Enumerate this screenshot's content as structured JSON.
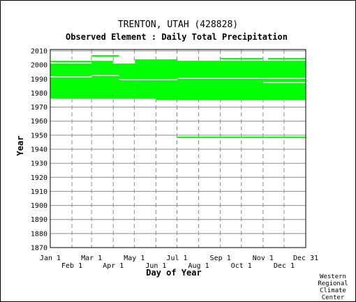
{
  "chart_data": {
    "type": "heatmap",
    "title": "TRENTON, UTAH   (428828)",
    "subtitle": "Observed Element : Daily Total Precipitation",
    "xlabel": "Day of Year",
    "ylabel": "Year",
    "credit": [
      "Western",
      "Regional",
      "Climate",
      "Center"
    ],
    "xlim": [
      1,
      366
    ],
    "ylim": [
      1870,
      2011
    ],
    "y_ticks": [
      1870,
      1880,
      1890,
      1900,
      1910,
      1920,
      1930,
      1940,
      1950,
      1960,
      1970,
      1980,
      1990,
      2000,
      2010
    ],
    "x_ticks_upper": [
      {
        "label": "Jan 1",
        "day": 1
      },
      {
        "label": "Mar 1",
        "day": 60
      },
      {
        "label": "May 1",
        "day": 121
      },
      {
        "label": "Jul 1",
        "day": 182
      },
      {
        "label": "Sep 1",
        "day": 244
      },
      {
        "label": "Nov 1",
        "day": 305
      },
      {
        "label": "Dec 31",
        "day": 366
      }
    ],
    "x_ticks_lower": [
      {
        "label": "Feb 1",
        "day": 32
      },
      {
        "label": "Apr 1",
        "day": 91
      },
      {
        "label": "Jun 1",
        "day": 152
      },
      {
        "label": "Aug 1",
        "day": 213
      },
      {
        "label": "Oct 1",
        "day": 274
      },
      {
        "label": "Dec 1",
        "day": 335
      }
    ],
    "grid": true,
    "series_color": "#00ff00",
    "observed_blocks": [
      {
        "day_start": 1,
        "day_end": 60,
        "year_start": 1976,
        "year_end": 1999
      },
      {
        "day_start": 60,
        "day_end": 91,
        "year_start": 1976,
        "year_end": 2002
      },
      {
        "day_start": 91,
        "day_end": 122,
        "year_start": 1976,
        "year_end": 2000
      },
      {
        "day_start": 122,
        "day_end": 152,
        "year_start": 1976,
        "year_end": 2003
      },
      {
        "day_start": 152,
        "day_end": 182,
        "year_start": 1975,
        "year_end": 2003
      },
      {
        "day_start": 182,
        "day_end": 366,
        "year_start": 1975,
        "year_end": 2002
      }
    ],
    "observed_segments": [
      {
        "day_start": 1,
        "day_end": 60,
        "year": 2000
      },
      {
        "day_start": 1,
        "day_end": 60,
        "year": 2002
      },
      {
        "day_start": 60,
        "day_end": 99,
        "year": 2006
      },
      {
        "day_start": 182,
        "day_end": 366,
        "year": 1948
      },
      {
        "day_start": 244,
        "day_end": 305,
        "year": 2004
      },
      {
        "day_start": 312,
        "day_end": 366,
        "year": 2004
      }
    ],
    "missing_lines": [
      {
        "day_start": 1,
        "day_end": 60,
        "year": 1991
      },
      {
        "day_start": 60,
        "day_end": 99,
        "year": 1992
      },
      {
        "day_start": 99,
        "day_end": 182,
        "year": 1989
      },
      {
        "day_start": 182,
        "day_end": 366,
        "year": 1990
      },
      {
        "day_start": 305,
        "day_end": 366,
        "year": 1987
      },
      {
        "day_start": 1,
        "day_end": 60,
        "year": 2003
      }
    ]
  }
}
